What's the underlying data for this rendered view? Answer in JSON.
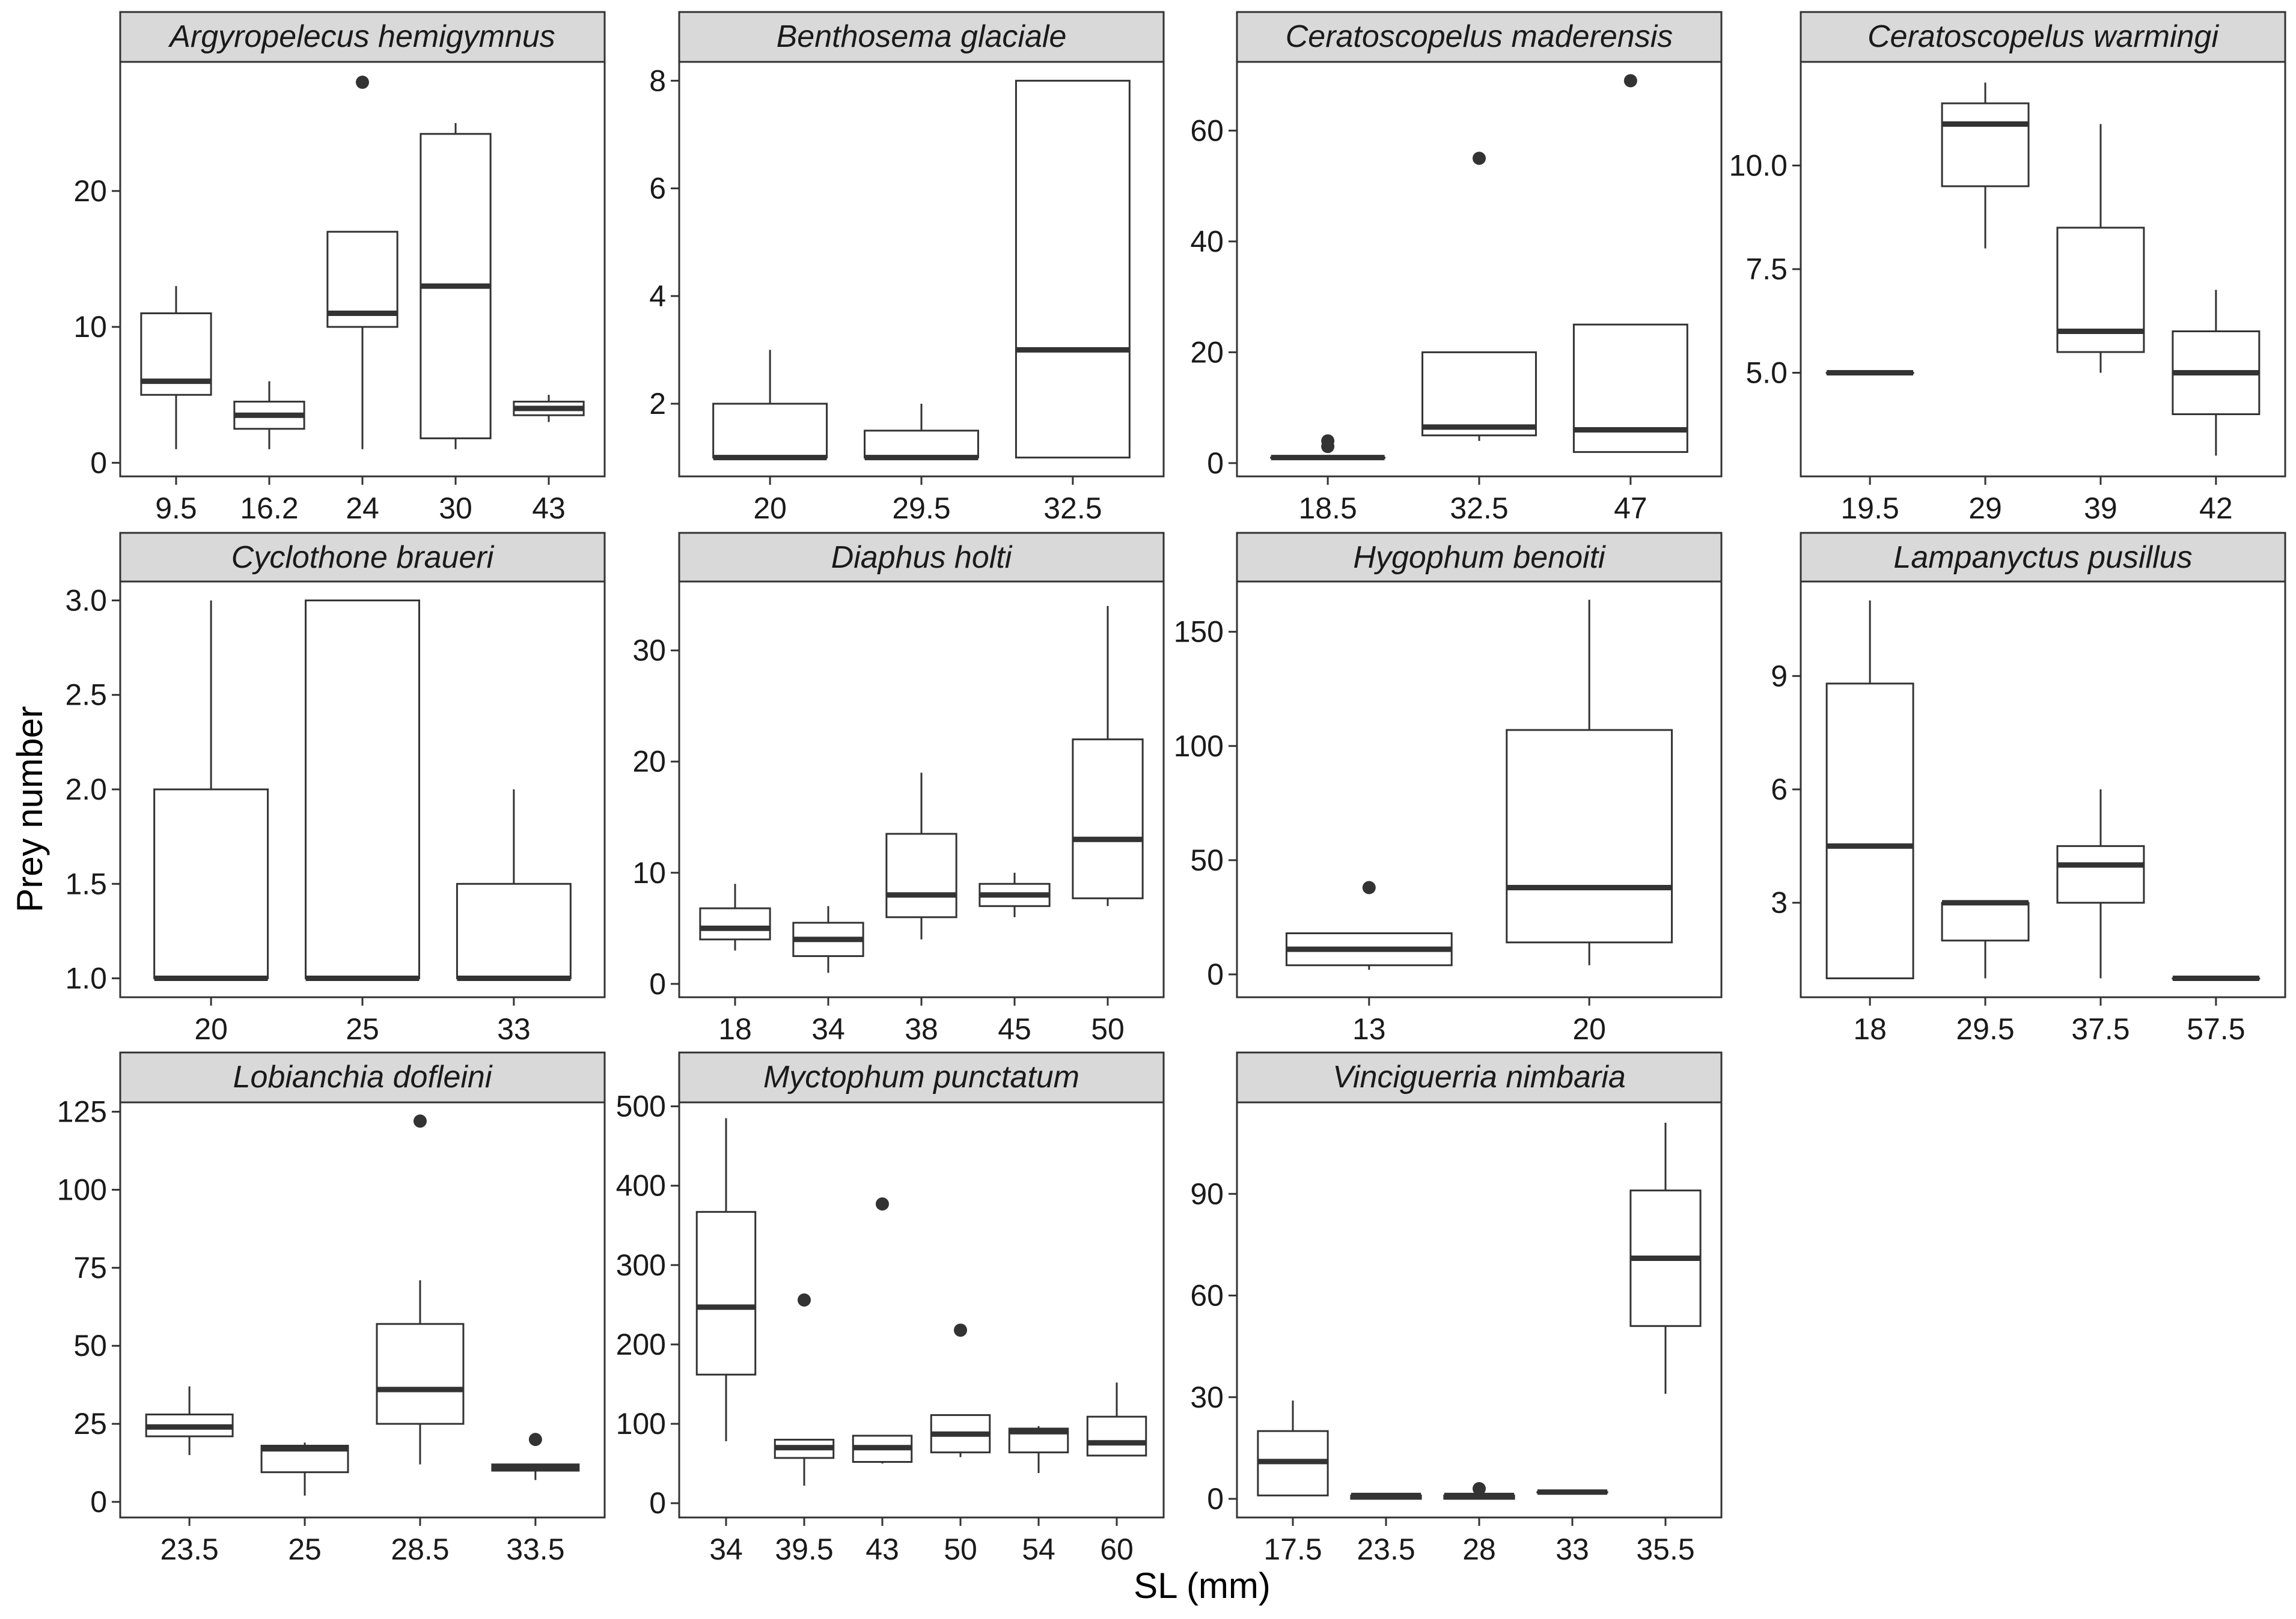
{
  "figure": {
    "xlabel": "SL (mm)",
    "ylabel": "Prey number",
    "colors": {
      "strip_fill": "#d9d9d9",
      "line": "#333333",
      "background": "#ffffff"
    }
  },
  "chart_data": [
    {
      "type": "box",
      "title": "Argyropelecus hemigymnus",
      "categories": [
        "9.5",
        "16.2",
        "24",
        "30",
        "43"
      ],
      "ylim": [
        -1,
        29.5
      ],
      "yticks": [
        0,
        10,
        20
      ],
      "ytick_labels": [
        "0",
        "10",
        "20"
      ],
      "boxes": [
        {
          "low": 1,
          "q1": 5,
          "median": 6,
          "q3": 11,
          "high": 13,
          "outliers": []
        },
        {
          "low": 1,
          "q1": 2.5,
          "median": 3.5,
          "q3": 4.5,
          "high": 6,
          "outliers": []
        },
        {
          "low": 1,
          "q1": 10,
          "median": 11,
          "q3": 17,
          "high": 17,
          "outliers": [
            28
          ]
        },
        {
          "low": 1,
          "q1": 1.8,
          "median": 13,
          "q3": 24.2,
          "high": 25,
          "outliers": []
        },
        {
          "low": 3,
          "q1": 3.5,
          "median": 4,
          "q3": 4.5,
          "high": 5,
          "outliers": []
        }
      ]
    },
    {
      "type": "box",
      "title": "Benthosema glaciale",
      "categories": [
        "20",
        "29.5",
        "32.5"
      ],
      "ylim": [
        0.65,
        8.35
      ],
      "yticks": [
        2,
        4,
        6,
        8
      ],
      "ytick_labels": [
        "2",
        "4",
        "6",
        "8"
      ],
      "boxes": [
        {
          "low": 1,
          "q1": 1,
          "median": 1,
          "q3": 2,
          "high": 3,
          "outliers": []
        },
        {
          "low": 1,
          "q1": 1,
          "median": 1,
          "q3": 1.5,
          "high": 2,
          "outliers": []
        },
        {
          "low": 1,
          "q1": 1,
          "median": 3,
          "q3": 8,
          "high": 8,
          "outliers": []
        }
      ]
    },
    {
      "type": "box",
      "title": "Ceratoscopelus maderensis",
      "categories": [
        "18.5",
        "32.5",
        "47"
      ],
      "ylim": [
        -2.4,
        72.4
      ],
      "yticks": [
        0,
        20,
        40,
        60
      ],
      "ytick_labels": [
        "0",
        "20",
        "40",
        "60"
      ],
      "boxes": [
        {
          "low": 1,
          "q1": 1,
          "median": 1,
          "q3": 1,
          "high": 1,
          "outliers": [
            3,
            4
          ]
        },
        {
          "low": 4,
          "q1": 5,
          "median": 6.5,
          "q3": 20,
          "high": 20,
          "outliers": [
            55
          ]
        },
        {
          "low": 2,
          "q1": 2,
          "median": 6,
          "q3": 25,
          "high": 25,
          "outliers": [
            69
          ]
        }
      ]
    },
    {
      "type": "box",
      "title": "Ceratoscopelus warmingi",
      "categories": [
        "19.5",
        "29",
        "39",
        "42"
      ],
      "ylim": [
        2.5,
        12.5
      ],
      "yticks": [
        5,
        7.5,
        10
      ],
      "ytick_labels": [
        "5.0",
        "7.5",
        "10.0"
      ],
      "boxes": [
        {
          "low": 5,
          "q1": 5,
          "median": 5,
          "q3": 5,
          "high": 5,
          "outliers": []
        },
        {
          "low": 8,
          "q1": 9.5,
          "median": 11,
          "q3": 11.5,
          "high": 12,
          "outliers": []
        },
        {
          "low": 5,
          "q1": 5.5,
          "median": 6,
          "q3": 8.5,
          "high": 11,
          "outliers": []
        },
        {
          "low": 3,
          "q1": 4,
          "median": 5,
          "q3": 6,
          "high": 7,
          "outliers": []
        }
      ]
    },
    {
      "type": "box",
      "title": "Cyclothone braueri",
      "categories": [
        "20",
        "25",
        "33"
      ],
      "ylim": [
        0.9,
        3.1
      ],
      "yticks": [
        1,
        1.5,
        2,
        2.5,
        3
      ],
      "ytick_labels": [
        "1.0",
        "1.5",
        "2.0",
        "2.5",
        "3.0"
      ],
      "boxes": [
        {
          "low": 1,
          "q1": 1,
          "median": 1,
          "q3": 2,
          "high": 3,
          "outliers": []
        },
        {
          "low": 1,
          "q1": 1,
          "median": 1,
          "q3": 3,
          "high": 3,
          "outliers": []
        },
        {
          "low": 1,
          "q1": 1,
          "median": 1,
          "q3": 1.5,
          "high": 2,
          "outliers": []
        }
      ]
    },
    {
      "type": "box",
      "title": "Diaphus holti",
      "categories": [
        "18",
        "34",
        "38",
        "45",
        "50"
      ],
      "ylim": [
        -1.2,
        36.2
      ],
      "yticks": [
        0,
        10,
        20,
        30
      ],
      "ytick_labels": [
        "0",
        "10",
        "20",
        "30"
      ],
      "boxes": [
        {
          "low": 3,
          "q1": 4,
          "median": 5,
          "q3": 6.8,
          "high": 9,
          "outliers": []
        },
        {
          "low": 1,
          "q1": 2.5,
          "median": 4,
          "q3": 5.5,
          "high": 7,
          "outliers": []
        },
        {
          "low": 4,
          "q1": 6,
          "median": 8,
          "q3": 13.5,
          "high": 19,
          "outliers": []
        },
        {
          "low": 6,
          "q1": 7,
          "median": 8,
          "q3": 9,
          "high": 10,
          "outliers": []
        },
        {
          "low": 7,
          "q1": 7.7,
          "median": 13,
          "q3": 22,
          "high": 34,
          "outliers": []
        }
      ]
    },
    {
      "type": "box",
      "title": "Hygophum benoiti",
      "categories": [
        "13",
        "20"
      ],
      "ylim": [
        -10,
        172
      ],
      "yticks": [
        0,
        50,
        100,
        150
      ],
      "ytick_labels": [
        "0",
        "50",
        "100",
        "150"
      ],
      "boxes": [
        {
          "low": 2,
          "q1": 4,
          "median": 11,
          "q3": 18,
          "high": 18,
          "outliers": [
            38
          ]
        },
        {
          "low": 4,
          "q1": 14,
          "median": 38,
          "q3": 107,
          "high": 164,
          "outliers": []
        }
      ]
    },
    {
      "type": "box",
      "title": "Lampanyctus pusillus",
      "categories": [
        "18",
        "29.5",
        "37.5",
        "57.5"
      ],
      "ylim": [
        0.5,
        11.5
      ],
      "yticks": [
        3,
        6,
        9
      ],
      "ytick_labels": [
        "3",
        "6",
        "9"
      ],
      "boxes": [
        {
          "low": 1,
          "q1": 1,
          "median": 4.5,
          "q3": 8.8,
          "high": 11,
          "outliers": []
        },
        {
          "low": 1,
          "q1": 2,
          "median": 3,
          "q3": 3,
          "high": 3,
          "outliers": []
        },
        {
          "low": 1,
          "q1": 3,
          "median": 4,
          "q3": 4.5,
          "high": 6,
          "outliers": []
        },
        {
          "low": 1,
          "q1": 1,
          "median": 1,
          "q3": 1,
          "high": 1,
          "outliers": []
        }
      ]
    },
    {
      "type": "box",
      "title": "Lobianchia dofleini",
      "categories": [
        "23.5",
        "25",
        "28.5",
        "33.5"
      ],
      "ylim": [
        -5,
        128
      ],
      "yticks": [
        0,
        25,
        50,
        75,
        100,
        125
      ],
      "ytick_labels": [
        "0",
        "25",
        "50",
        "75",
        "100",
        "125"
      ],
      "boxes": [
        {
          "low": 15,
          "q1": 21,
          "median": 24,
          "q3": 28,
          "high": 37,
          "outliers": []
        },
        {
          "low": 2,
          "q1": 9.5,
          "median": 17,
          "q3": 18,
          "high": 19,
          "outliers": []
        },
        {
          "low": 12,
          "q1": 25,
          "median": 36,
          "q3": 57,
          "high": 71,
          "outliers": [
            122
          ]
        },
        {
          "low": 7,
          "q1": 10,
          "median": 11,
          "q3": 12,
          "high": 12,
          "outliers": [
            20
          ]
        }
      ]
    },
    {
      "type": "box",
      "title": "Myctophum punctatum",
      "categories": [
        "34",
        "39.5",
        "43",
        "50",
        "54",
        "60"
      ],
      "ylim": [
        -18,
        505
      ],
      "yticks": [
        0,
        100,
        200,
        300,
        400,
        500
      ],
      "ytick_labels": [
        "0",
        "100",
        "200",
        "300",
        "400",
        "500"
      ],
      "boxes": [
        {
          "low": 78,
          "q1": 162,
          "median": 247,
          "q3": 367,
          "high": 485,
          "outliers": []
        },
        {
          "low": 22,
          "q1": 57,
          "median": 70,
          "q3": 80,
          "high": 80,
          "outliers": [
            256
          ]
        },
        {
          "low": 50,
          "q1": 52,
          "median": 70,
          "q3": 85,
          "high": 85,
          "outliers": [
            377
          ]
        },
        {
          "low": 58,
          "q1": 64,
          "median": 87,
          "q3": 111,
          "high": 111,
          "outliers": [
            218
          ]
        },
        {
          "low": 38,
          "q1": 64,
          "median": 90,
          "q3": 94,
          "high": 97,
          "outliers": []
        },
        {
          "low": 60,
          "q1": 60,
          "median": 76,
          "q3": 109,
          "high": 152,
          "outliers": []
        }
      ]
    },
    {
      "type": "box",
      "title": "Vinciguerria nimbaria",
      "categories": [
        "17.5",
        "23.5",
        "28",
        "33",
        "35.5"
      ],
      "ylim": [
        -5.5,
        117
      ],
      "yticks": [
        0,
        30,
        60,
        90
      ],
      "ytick_labels": [
        "0",
        "30",
        "60",
        "90"
      ],
      "boxes": [
        {
          "low": 1,
          "q1": 1,
          "median": 11,
          "q3": 20,
          "high": 29,
          "outliers": []
        },
        {
          "low": 0,
          "q1": 0,
          "median": 1,
          "q3": 1,
          "high": 1,
          "outliers": []
        },
        {
          "low": 0,
          "q1": 0,
          "median": 1,
          "q3": 1,
          "high": 1,
          "outliers": [
            3
          ]
        },
        {
          "low": 2,
          "q1": 2,
          "median": 2,
          "q3": 2,
          "high": 2,
          "outliers": []
        },
        {
          "low": 31,
          "q1": 51,
          "median": 71,
          "q3": 91,
          "high": 111,
          "outliers": []
        }
      ]
    }
  ]
}
